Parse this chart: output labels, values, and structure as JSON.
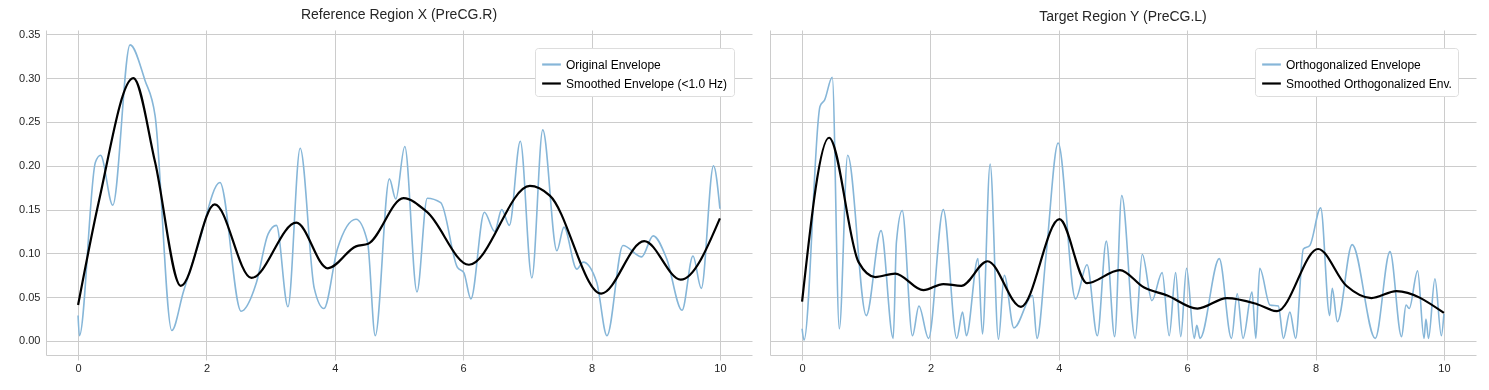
{
  "chart_data": [
    {
      "type": "line",
      "title": "Reference Region X (PreCG.R)",
      "xlim": [
        -0.5,
        10.5
      ],
      "xticks": [
        0,
        2,
        4,
        6,
        8,
        10
      ],
      "ylim": [
        -0.016,
        0.355
      ],
      "yticks": [
        {
          "value": 0,
          "label": "0.00"
        },
        {
          "value": 0.05,
          "label": "0.05"
        },
        {
          "value": 0.1,
          "label": "0.10"
        },
        {
          "value": 0.15,
          "label": "0.15"
        },
        {
          "value": 0.2,
          "label": "0.20"
        },
        {
          "value": 0.25,
          "label": "0.25"
        },
        {
          "value": 0.3,
          "label": "0.30"
        },
        {
          "value": 0.35,
          "label": "0.35"
        }
      ],
      "grid": true,
      "legend": "top right",
      "series": [
        {
          "name": "Original Envelope",
          "color": "#86b6d8",
          "x": [
            0,
            0.02,
            0.27,
            0.35,
            0.54,
            0.81,
            1.04,
            1.2,
            1.46,
            1.64,
            1.87,
            2.21,
            2.54,
            2.78,
            2.96,
            3.09,
            3.27,
            3.46,
            3.68,
            3.83,
            4.04,
            4.33,
            4.51,
            4.63,
            4.85,
            4.95,
            5.09,
            5.28,
            5.44,
            5.65,
            5.91,
            6.01,
            6.12,
            6.33,
            6.49,
            6.6,
            6.72,
            6.89,
            7.07,
            7.24,
            7.46,
            7.57,
            7.77,
            7.87,
            8.08,
            8.24,
            8.49,
            8.78,
            8.96,
            9.17,
            9.41,
            9.58,
            9.71,
            9.9,
            10
          ],
          "values": [
            0.029,
            0.006,
            0.204,
            0.212,
            0.155,
            0.338,
            0.298,
            0.257,
            0.012,
            0.056,
            0.109,
            0.181,
            0.034,
            0.067,
            0.122,
            0.132,
            0.039,
            0.22,
            0.06,
            0.037,
            0.105,
            0.139,
            0.113,
            0.006,
            0.185,
            0.162,
            0.222,
            0.056,
            0.163,
            0.158,
            0.084,
            0.078,
            0.048,
            0.147,
            0.125,
            0.15,
            0.132,
            0.228,
            0.072,
            0.241,
            0.103,
            0.13,
            0.082,
            0.09,
            0.067,
            0.006,
            0.109,
            0.096,
            0.12,
            0.094,
            0.035,
            0.097,
            0.06,
            0.2,
            0.151
          ]
        },
        {
          "name": "Smoothed Envelope (<1.0 Hz)",
          "color": "#000000",
          "x": [
            0,
            0.32,
            0.86,
            1.2,
            1.6,
            2.13,
            2.7,
            3.4,
            3.89,
            4.33,
            4.52,
            5.07,
            5.44,
            6.09,
            7.04,
            7.35,
            8.15,
            8.82,
            9.39,
            10
          ],
          "values": [
            0.041,
            0.158,
            0.3,
            0.204,
            0.063,
            0.156,
            0.072,
            0.135,
            0.083,
            0.108,
            0.111,
            0.163,
            0.147,
            0.087,
            0.177,
            0.166,
            0.054,
            0.114,
            0.07,
            0.14
          ]
        }
      ]
    },
    {
      "type": "line",
      "title": "Target Region Y (PreCG.L)",
      "xlim": [
        -0.5,
        10.5
      ],
      "xticks": [
        0,
        2,
        4,
        6,
        8,
        10
      ],
      "ylim": [
        -0.016,
        0.355
      ],
      "yticks": [
        0,
        0.05,
        0.1,
        0.15,
        0.2,
        0.25,
        0.3,
        0.35
      ],
      "grid": true,
      "legend": "top right",
      "tick_labels": "x",
      "series": [
        {
          "name": "Orthogonalized Envelope",
          "color": "#86b6d8",
          "x": [
            0,
            0.03,
            0.28,
            0.35,
            0.47,
            0.58,
            0.71,
            1,
            1.23,
            1.42,
            1.47,
            1.56,
            1.72,
            1.82,
            1.97,
            2.2,
            2.41,
            2.5,
            2.56,
            2.74,
            2.81,
            2.93,
            3.06,
            3.15,
            3.3,
            3.59,
            3.66,
            3.8,
            3.99,
            4.26,
            4.44,
            4.6,
            4.74,
            4.87,
            4.98,
            5.19,
            5.3,
            5.45,
            5.61,
            5.72,
            5.82,
            5.9,
            5.99,
            6.11,
            6.15,
            6.2,
            6.5,
            6.69,
            6.78,
            6.87,
            7.01,
            7.07,
            7.13,
            7.29,
            7.42,
            7.5,
            7.6,
            7.69,
            7.81,
            7.91,
            8.08,
            8.22,
            8.26,
            8.34,
            8.57,
            8.93,
            9.16,
            9.34,
            9.41,
            9.46,
            9.59,
            9.69,
            9.72,
            9.76,
            9.86,
            9.96,
            10
          ],
          "values": [
            0.014,
            0.001,
            0.268,
            0.275,
            0.301,
            0.014,
            0.212,
            0.029,
            0.126,
            0.003,
            0.113,
            0.149,
            0.006,
            0.04,
            0.003,
            0.15,
            0.003,
            0.033,
            0.006,
            0.094,
            0.008,
            0.202,
            0.002,
            0.075,
            0.015,
            0.052,
            0.003,
            0.097,
            0.226,
            0.048,
            0.087,
            0.006,
            0.114,
            0.005,
            0.166,
            0.003,
            0.099,
            0.046,
            0.078,
            0.006,
            0.078,
            0.005,
            0.083,
            0.003,
            0.018,
            0.003,
            0.094,
            0.003,
            0.054,
            0.003,
            0.056,
            0.003,
            0.083,
            0.041,
            0.04,
            0.003,
            0.033,
            0.003,
            0.105,
            0.109,
            0.152,
            0.029,
            0.06,
            0.022,
            0.11,
            0.003,
            0.102,
            0.005,
            0.041,
            0.037,
            0.08,
            0.003,
            0.025,
            0.003,
            0.071,
            0.006,
            0.031
          ]
        },
        {
          "name": "Smoothed Orthogonalized Env.",
          "color": "#000000",
          "x": [
            0,
            0.42,
            0.88,
            1.14,
            1.45,
            1.89,
            2.2,
            2.48,
            2.89,
            3.41,
            4.01,
            4.44,
            4.95,
            5.33,
            5.69,
            6.16,
            6.62,
            7.09,
            7.4,
            8.04,
            8.48,
            8.87,
            9.26,
            10
          ],
          "values": [
            0.045,
            0.232,
            0.09,
            0.073,
            0.077,
            0.058,
            0.065,
            0.063,
            0.091,
            0.039,
            0.139,
            0.066,
            0.081,
            0.061,
            0.052,
            0.037,
            0.049,
            0.042,
            0.034,
            0.105,
            0.063,
            0.049,
            0.057,
            0.032
          ]
        }
      ]
    }
  ]
}
